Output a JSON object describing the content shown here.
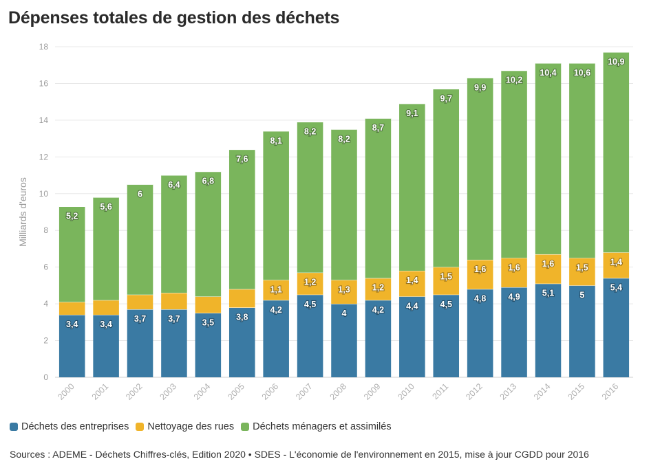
{
  "title": "Dépenses totales de gestion des déchets",
  "source": "Sources : ADEME - Déchets Chiffres-clés, Edition 2020 • SDES - L'économie de l'environnement en 2015, mise à jour CGDD pour 2016",
  "chart_data": {
    "type": "bar",
    "stacked": true,
    "title": "Dépenses totales de gestion des déchets",
    "xlabel": "",
    "ylabel": "Milliards d'euros",
    "ylim": [
      0,
      18
    ],
    "yticks": [
      0,
      2,
      4,
      6,
      8,
      10,
      12,
      14,
      16,
      18
    ],
    "grid": true,
    "legend_position": "bottom-left",
    "categories": [
      "2000",
      "2001",
      "2002",
      "2003",
      "2004",
      "2005",
      "2006",
      "2007",
      "2008",
      "2009",
      "2010",
      "2011",
      "2012",
      "2013",
      "2014",
      "2015",
      "2016"
    ],
    "series": [
      {
        "name": "Déchets des entreprises",
        "color": "#3a7aa3",
        "values": [
          3.4,
          3.4,
          3.7,
          3.7,
          3.5,
          3.8,
          4.2,
          4.5,
          4.0,
          4.2,
          4.4,
          4.5,
          4.8,
          4.9,
          5.1,
          5.0,
          5.4
        ],
        "labels": [
          "3,4",
          "3,4",
          "3,7",
          "3,7",
          "3,5",
          "3,8",
          "4,2",
          "4,5",
          "4",
          "4,2",
          "4,4",
          "4,5",
          "4,8",
          "4,9",
          "5,1",
          "5",
          "5,4"
        ]
      },
      {
        "name": "Nettoyage des rues",
        "color": "#f0b42a",
        "values": [
          0.7,
          0.8,
          0.8,
          0.9,
          0.9,
          1.0,
          1.1,
          1.2,
          1.3,
          1.2,
          1.4,
          1.5,
          1.6,
          1.6,
          1.6,
          1.5,
          1.4
        ],
        "labels": [
          "",
          "",
          "",
          "",
          "",
          "",
          "1,1",
          "1,2",
          "1,3",
          "1,2",
          "1,4",
          "1,5",
          "1,6",
          "1,6",
          "1,6",
          "1,5",
          "1,4"
        ]
      },
      {
        "name": "Déchets ménagers et assimilés",
        "color": "#7ab55c",
        "values": [
          5.2,
          5.6,
          6.0,
          6.4,
          6.8,
          7.6,
          8.1,
          8.2,
          8.2,
          8.7,
          9.1,
          9.7,
          9.9,
          10.2,
          10.4,
          10.6,
          10.9
        ],
        "labels": [
          "5,2",
          "5,6",
          "6",
          "6,4",
          "6,8",
          "7,6",
          "8,1",
          "8,2",
          "8,2",
          "8,7",
          "9,1",
          "9,7",
          "9,9",
          "10,2",
          "10,4",
          "10,6",
          "10,9"
        ]
      }
    ]
  }
}
